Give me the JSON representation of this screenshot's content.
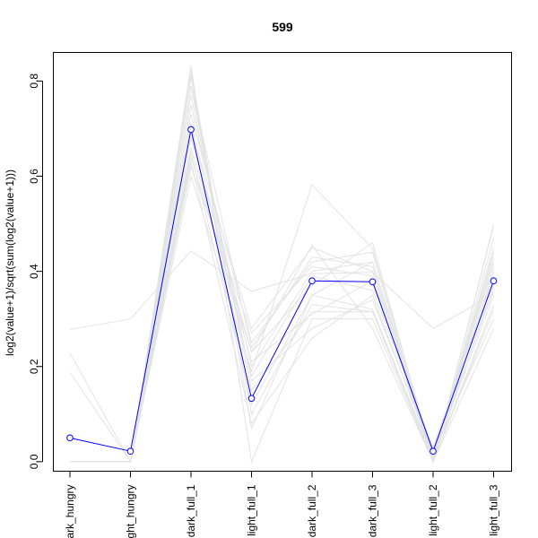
{
  "chart_data": {
    "type": "line",
    "title": "599",
    "xlabel": "",
    "ylabel": "log2(value+1)/sqrt(sum(log2(value+1)))",
    "categories": [
      "dark_hungry",
      "light_hungry",
      "dark_full_1",
      "light_full_1",
      "dark_full_2",
      "dark_full_3",
      "light_full_2",
      "light_full_3"
    ],
    "category_tick_labels": [
      "ark_hungry",
      "ght_hungry",
      "dark_full_1",
      "light_full_1",
      "dark_full_2",
      "dark_full_3",
      "light_full_2",
      "light_full_3"
    ],
    "ylim": [
      -0.02,
      0.86
    ],
    "yticks": [
      0.0,
      0.2,
      0.4,
      0.6,
      0.8
    ],
    "ytick_labels": [
      "0.0",
      "0.2",
      "0.4",
      "0.6",
      "0.8"
    ],
    "grid": false,
    "legend": "none",
    "highlight_color": "#0000ff",
    "background_color": "#e3e3e3",
    "highlight": {
      "values": [
        0.05,
        0.022,
        0.698,
        0.133,
        0.38,
        0.378,
        0.022,
        0.38
      ],
      "markers": "open-circle"
    },
    "background_series": [
      {
        "values": [
          0.278,
          0.3,
          0.443,
          0.358,
          0.395,
          0.398,
          0.28,
          0.352
        ]
      },
      {
        "values": [
          0.228,
          0.0,
          0.6,
          0.19,
          0.582,
          0.448,
          0.01,
          0.42
        ]
      },
      {
        "values": [
          0.188,
          0.0,
          0.64,
          0.23,
          0.455,
          0.28,
          0.0,
          0.498
        ]
      },
      {
        "values": [
          0.0,
          0.0,
          0.832,
          0.0,
          0.3,
          0.3,
          0.0,
          0.495
        ]
      },
      {
        "values": [
          0.0,
          0.0,
          0.82,
          0.1,
          0.33,
          0.315,
          0.0,
          0.47
        ]
      },
      {
        "values": [
          0.0,
          0.0,
          0.81,
          0.07,
          0.35,
          0.32,
          0.005,
          0.45
        ]
      },
      {
        "values": [
          0.0,
          0.0,
          0.79,
          0.15,
          0.315,
          0.315,
          0.01,
          0.43
        ]
      },
      {
        "values": [
          0.0,
          0.0,
          0.77,
          0.17,
          0.28,
          0.34,
          0.02,
          0.41
        ]
      },
      {
        "values": [
          0.0,
          0.0,
          0.75,
          0.2,
          0.4,
          0.42,
          0.015,
          0.3
        ]
      },
      {
        "values": [
          0.0,
          0.0,
          0.73,
          0.25,
          0.42,
          0.44,
          0.0,
          0.28
        ]
      },
      {
        "values": [
          0.0,
          0.0,
          0.71,
          0.18,
          0.39,
          0.36,
          0.03,
          0.39
        ]
      },
      {
        "values": [
          0.0,
          0.0,
          0.7,
          0.28,
          0.45,
          0.4,
          0.01,
          0.35
        ]
      },
      {
        "values": [
          0.0,
          0.0,
          0.68,
          0.23,
          0.37,
          0.46,
          0.005,
          0.37
        ]
      },
      {
        "values": [
          0.0,
          0.0,
          0.66,
          0.21,
          0.31,
          0.38,
          0.02,
          0.36
        ]
      },
      {
        "values": [
          0.0,
          0.0,
          0.65,
          0.12,
          0.35,
          0.42,
          0.0,
          0.33
        ]
      },
      {
        "values": [
          0.0,
          0.0,
          0.63,
          0.08,
          0.26,
          0.35,
          0.01,
          0.44
        ]
      },
      {
        "values": [
          0.0,
          0.0,
          0.62,
          0.27,
          0.41,
          0.39,
          0.0,
          0.32
        ]
      },
      {
        "values": [
          0.0,
          0.0,
          0.79,
          0.24,
          0.43,
          0.41,
          0.0,
          0.4
        ]
      }
    ]
  }
}
